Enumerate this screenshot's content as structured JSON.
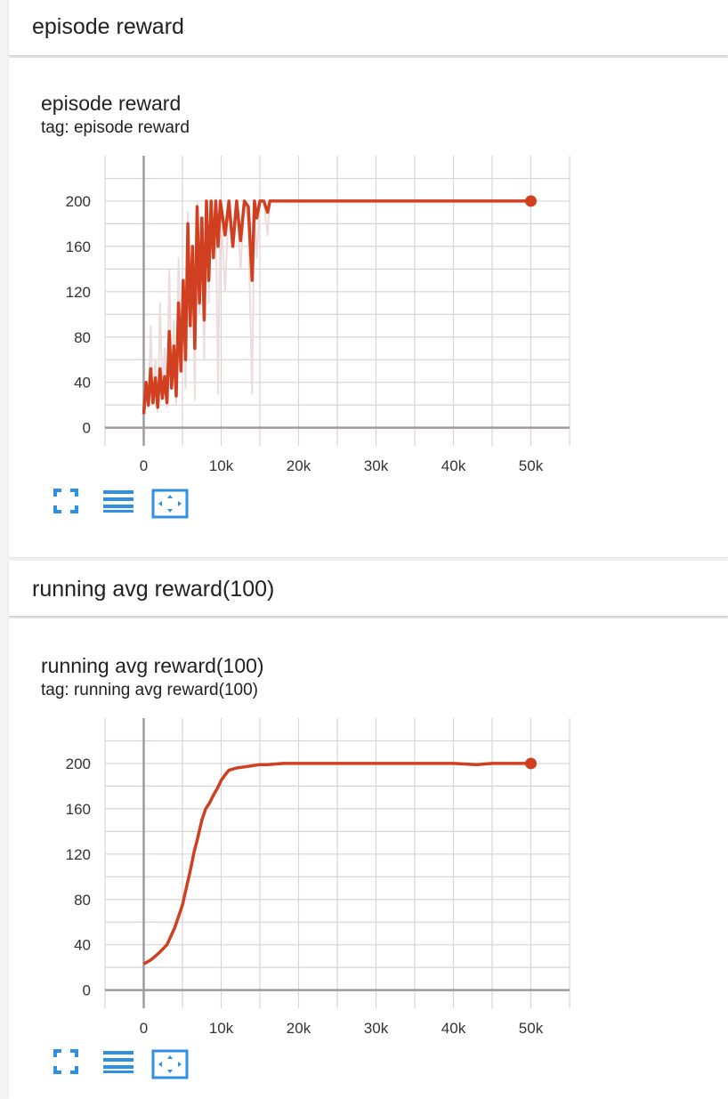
{
  "colors": {
    "accent": "#d04020",
    "smoothed_raw": "#ecdcdb",
    "icon_blue": "#2f8fe0"
  },
  "sections": [
    {
      "header": "episode reward",
      "card_title": "episode reward",
      "card_tag": "tag: episode reward",
      "tools": [
        "fit-to-screen-icon",
        "data-download-icon",
        "toggle-y-axis-icon"
      ]
    },
    {
      "header": "running avg reward(100)",
      "card_title": "running avg reward(100)",
      "card_tag": "tag: running avg reward(100)",
      "tools": [
        "fit-to-screen-icon",
        "data-download-icon",
        "toggle-y-axis-icon"
      ]
    }
  ],
  "chart_data": [
    {
      "type": "line",
      "title": "episode reward",
      "xlabel": "",
      "ylabel": "",
      "xlim": [
        -5000,
        55000
      ],
      "ylim": [
        -16,
        240
      ],
      "x_ticks": [
        0,
        10000,
        20000,
        30000,
        40000,
        50000
      ],
      "x_tick_labels": [
        "0",
        "10k",
        "20k",
        "30k",
        "40k",
        "50k"
      ],
      "y_ticks": [
        0,
        40,
        80,
        120,
        160,
        200
      ],
      "y_tick_labels": [
        "0",
        "40",
        "80",
        "120",
        "160",
        "200"
      ],
      "grid": true,
      "series": [
        {
          "name": "raw",
          "x": [
            0,
            300,
            600,
            900,
            1200,
            1500,
            1800,
            2100,
            2400,
            2700,
            3000,
            3300,
            3600,
            3900,
            4200,
            4500,
            4800,
            5100,
            5400,
            5700,
            6000,
            6300,
            6600,
            6900,
            7200,
            7500,
            7800,
            8100,
            8400,
            8700,
            9000,
            9300,
            9600,
            9900,
            10500,
            11000,
            11500,
            12000,
            12500,
            13000,
            13500,
            14000,
            14300,
            14600,
            15000,
            15500,
            16000,
            16300,
            16600,
            17000,
            50000
          ],
          "values": [
            15,
            40,
            18,
            90,
            22,
            60,
            14,
            110,
            30,
            70,
            18,
            140,
            40,
            95,
            20,
            150,
            60,
            120,
            35,
            190,
            80,
            150,
            25,
            200,
            100,
            170,
            60,
            200,
            110,
            200,
            150,
            200,
            30,
            200,
            120,
            200,
            160,
            200,
            140,
            200,
            180,
            30,
            200,
            150,
            200,
            200,
            170,
            200,
            200,
            200,
            200
          ]
        },
        {
          "name": "smoothed",
          "x": [
            0,
            300,
            600,
            900,
            1200,
            1500,
            1800,
            2100,
            2400,
            2700,
            3000,
            3300,
            3600,
            3900,
            4200,
            4500,
            4800,
            5100,
            5400,
            5700,
            6000,
            6300,
            6600,
            6900,
            7200,
            7500,
            7800,
            8100,
            8400,
            8700,
            9000,
            9300,
            9600,
            9900,
            10500,
            11000,
            11500,
            12000,
            12500,
            13000,
            13500,
            14000,
            14300,
            14600,
            15000,
            15500,
            16000,
            16300,
            16600,
            17000,
            50000
          ],
          "values": [
            12,
            40,
            20,
            52,
            22,
            44,
            18,
            52,
            26,
            45,
            22,
            85,
            35,
            72,
            28,
            110,
            50,
            130,
            60,
            180,
            90,
            160,
            70,
            195,
            110,
            185,
            95,
            200,
            130,
            200,
            150,
            200,
            160,
            200,
            170,
            200,
            160,
            200,
            165,
            200,
            195,
            130,
            200,
            185,
            200,
            200,
            190,
            200,
            200,
            200,
            200
          ]
        }
      ]
    },
    {
      "type": "line",
      "title": "running avg reward(100)",
      "xlabel": "",
      "ylabel": "",
      "xlim": [
        -5000,
        55000
      ],
      "ylim": [
        -16,
        240
      ],
      "x_ticks": [
        0,
        10000,
        20000,
        30000,
        40000,
        50000
      ],
      "x_tick_labels": [
        "0",
        "10k",
        "20k",
        "30k",
        "40k",
        "50k"
      ],
      "y_ticks": [
        0,
        40,
        80,
        120,
        160,
        200
      ],
      "y_tick_labels": [
        "0",
        "40",
        "80",
        "120",
        "160",
        "200"
      ],
      "grid": true,
      "series": [
        {
          "name": "smoothed",
          "x": [
            0,
            1000,
            2000,
            3000,
            4000,
            5000,
            5500,
            6000,
            6500,
            7000,
            7500,
            8000,
            8500,
            9000,
            9500,
            10000,
            10500,
            11000,
            12000,
            13000,
            14000,
            15000,
            16000,
            18000,
            20000,
            25000,
            30000,
            35000,
            40000,
            43000,
            45000,
            50000
          ],
          "values": [
            23,
            27,
            33,
            40,
            55,
            75,
            90,
            105,
            122,
            135,
            150,
            160,
            165,
            172,
            178,
            185,
            190,
            194,
            196,
            197,
            198,
            199,
            199,
            200,
            200,
            200,
            200,
            200,
            200,
            199,
            200,
            200
          ]
        }
      ]
    }
  ]
}
